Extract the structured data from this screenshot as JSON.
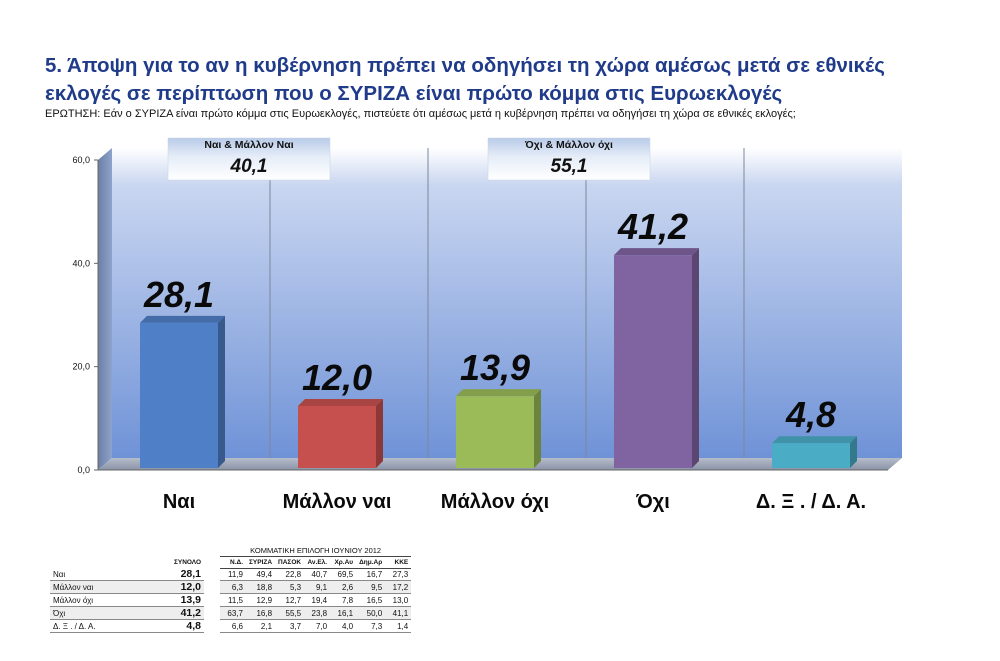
{
  "title": "5. Άποψη για το αν η κυβέρνηση πρέπει να οδηγήσει τη χώρα αμέσως μετά σε εθνικές εκλογές σε περίπτωση που ο ΣΥΡΙΖΑ είναι πρώτο κόμμα στις Ευρωεκλογές",
  "question": "ΕΡΩΤΗΣΗ: Εάν ο ΣΥΡΙΖΑ είναι πρώτο κόμμα στις Ευρωεκλογές, πιστεύετε ότι αμέσως μετά η κυβέρνηση πρέπει να οδηγήσει τη χώρα σε εθνικές εκλογές;",
  "callouts": [
    {
      "label": "Ναι & Μάλλον Ναι",
      "value": "40,1"
    },
    {
      "label": "Όχι & Μάλλον όχι",
      "value": "55,1"
    }
  ],
  "colors": {
    "bar_nai": "#4f7fc7",
    "bar_mallon_nai": "#c6504d",
    "bar_mallon_oxi": "#9bbb59",
    "bar_oxi": "#8064a2",
    "bar_dxda": "#4bacc6",
    "plot_top": "#c7d5ef",
    "plot_bottom": "#6b8fd6",
    "title": "#1f3b8a"
  },
  "chart_data": {
    "type": "bar",
    "categories": [
      "Ναι",
      "Μάλλον ναι",
      "Μάλλον όχι",
      "Όχι",
      "Δ. Ξ . / Δ. Α."
    ],
    "values": [
      28.1,
      12.0,
      13.9,
      41.2,
      4.8
    ],
    "value_labels": [
      "28,1",
      "12,0",
      "13,9",
      "41,2",
      "4,8"
    ],
    "ylim": [
      0,
      60
    ],
    "yticks": [
      "0,0",
      "20,0",
      "40,0",
      "60,0"
    ],
    "grid": "vertical separators between categories",
    "legend": "none"
  },
  "table": {
    "group_header": "ΚΟΜΜΑΤΙΚΗ ΕΠΙΛΟΓΗ ΙΟΥΝΙΟΥ 2012",
    "total_header": "ΣΥΝΟΛΟ",
    "party_headers": [
      "Ν.Δ.",
      "ΣΥΡΙΖΑ",
      "ΠΑΣΟΚ",
      "Αν.Ελ.",
      "Χρ.Αυ",
      "Δημ.Αρ",
      "ΚΚΕ"
    ],
    "rows": [
      {
        "label": "Ναι",
        "total": "28,1",
        "values": [
          "11,9",
          "49,4",
          "22,8",
          "40,7",
          "69,5",
          "16,7",
          "27,3"
        ]
      },
      {
        "label": "Μάλλον ναι",
        "total": "12,0",
        "values": [
          "6,3",
          "18,8",
          "5,3",
          "9,1",
          "2,6",
          "9,5",
          "17,2"
        ]
      },
      {
        "label": "Μάλλον όχι",
        "total": "13,9",
        "values": [
          "11,5",
          "12,9",
          "12,7",
          "19,4",
          "7,8",
          "16,5",
          "13,0"
        ]
      },
      {
        "label": "Όχι",
        "total": "41,2",
        "values": [
          "63,7",
          "16,8",
          "55,5",
          "23,8",
          "16,1",
          "50,0",
          "41,1"
        ]
      },
      {
        "label": "Δ. Ξ . / Δ. Α.",
        "total": "4,8",
        "values": [
          "6,6",
          "2,1",
          "3,7",
          "7,0",
          "4,0",
          "7,3",
          "1,4"
        ]
      }
    ]
  }
}
